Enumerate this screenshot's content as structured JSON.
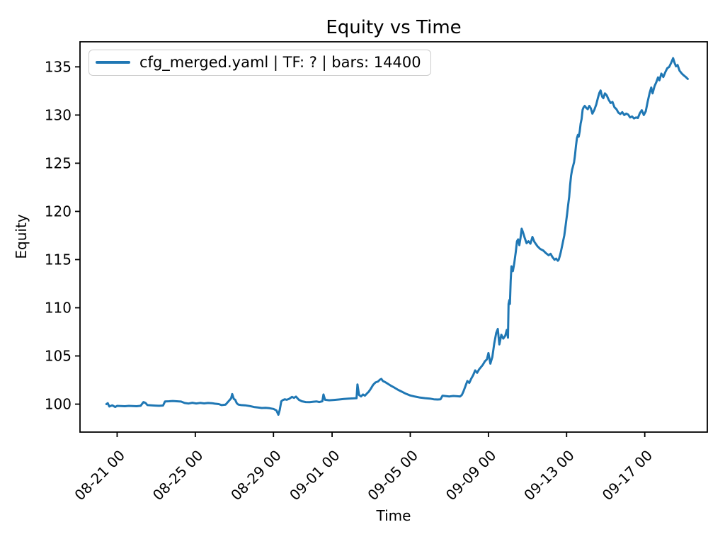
{
  "chart_data": {
    "type": "line",
    "title": "Equity vs Time",
    "xlabel": "Time",
    "ylabel": "Equity",
    "grid": false,
    "legend_position": "upper left",
    "line_color": "#1f77b4",
    "x_unit": "days since 08-19 00:00",
    "xlim": [
      0.1,
      32.2
    ],
    "ylim": [
      97.1,
      137.6
    ],
    "xticks": [
      {
        "pos": 2,
        "label": "08-21 00"
      },
      {
        "pos": 6,
        "label": "08-25 00"
      },
      {
        "pos": 10,
        "label": "08-29 00"
      },
      {
        "pos": 13,
        "label": "09-01 00"
      },
      {
        "pos": 17,
        "label": "09-05 00"
      },
      {
        "pos": 21,
        "label": "09-09 00"
      },
      {
        "pos": 25,
        "label": "09-13 00"
      },
      {
        "pos": 29,
        "label": "09-17 00"
      }
    ],
    "yticks": [
      100,
      105,
      110,
      115,
      120,
      125,
      130,
      135
    ],
    "series": [
      {
        "name": "cfg_merged.yaml | TF: ? | bars: 14400",
        "points": [
          [
            1.45,
            100.0
          ],
          [
            1.52,
            100.1
          ],
          [
            1.6,
            99.75
          ],
          [
            1.75,
            99.88
          ],
          [
            1.9,
            99.7
          ],
          [
            2.0,
            99.82
          ],
          [
            2.2,
            99.8
          ],
          [
            2.4,
            99.78
          ],
          [
            2.6,
            99.82
          ],
          [
            2.8,
            99.8
          ],
          [
            3.0,
            99.78
          ],
          [
            3.2,
            99.83
          ],
          [
            3.35,
            100.22
          ],
          [
            3.45,
            100.12
          ],
          [
            3.55,
            99.9
          ],
          [
            3.75,
            99.87
          ],
          [
            3.95,
            99.85
          ],
          [
            4.15,
            99.83
          ],
          [
            4.35,
            99.86
          ],
          [
            4.45,
            100.28
          ],
          [
            4.65,
            100.3
          ],
          [
            4.85,
            100.33
          ],
          [
            5.05,
            100.3
          ],
          [
            5.27,
            100.27
          ],
          [
            5.45,
            100.12
          ],
          [
            5.65,
            100.06
          ],
          [
            5.85,
            100.14
          ],
          [
            6.05,
            100.07
          ],
          [
            6.25,
            100.13
          ],
          [
            6.45,
            100.08
          ],
          [
            6.65,
            100.12
          ],
          [
            6.85,
            100.1
          ],
          [
            7.0,
            100.05
          ],
          [
            7.2,
            100.0
          ],
          [
            7.35,
            99.9
          ],
          [
            7.55,
            99.95
          ],
          [
            7.7,
            100.3
          ],
          [
            7.83,
            100.6
          ],
          [
            7.89,
            101.05
          ],
          [
            7.97,
            100.55
          ],
          [
            8.04,
            100.45
          ],
          [
            8.12,
            100.1
          ],
          [
            8.2,
            99.95
          ],
          [
            8.35,
            99.9
          ],
          [
            8.55,
            99.88
          ],
          [
            8.8,
            99.8
          ],
          [
            9.0,
            99.7
          ],
          [
            9.2,
            99.65
          ],
          [
            9.4,
            99.6
          ],
          [
            9.6,
            99.62
          ],
          [
            9.8,
            99.58
          ],
          [
            10.0,
            99.5
          ],
          [
            10.15,
            99.35
          ],
          [
            10.25,
            98.9
          ],
          [
            10.32,
            99.4
          ],
          [
            10.4,
            100.3
          ],
          [
            10.48,
            100.42
          ],
          [
            10.58,
            100.5
          ],
          [
            10.68,
            100.45
          ],
          [
            10.8,
            100.55
          ],
          [
            10.95,
            100.75
          ],
          [
            11.05,
            100.65
          ],
          [
            11.15,
            100.78
          ],
          [
            11.3,
            100.45
          ],
          [
            11.45,
            100.3
          ],
          [
            11.65,
            100.22
          ],
          [
            11.85,
            100.2
          ],
          [
            12.05,
            100.25
          ],
          [
            12.2,
            100.28
          ],
          [
            12.35,
            100.22
          ],
          [
            12.5,
            100.3
          ],
          [
            12.56,
            101.0
          ],
          [
            12.64,
            100.45
          ],
          [
            12.85,
            100.4
          ],
          [
            13.1,
            100.44
          ],
          [
            13.35,
            100.48
          ],
          [
            13.6,
            100.53
          ],
          [
            13.85,
            100.58
          ],
          [
            14.1,
            100.6
          ],
          [
            14.25,
            100.62
          ],
          [
            14.3,
            102.05
          ],
          [
            14.38,
            100.95
          ],
          [
            14.48,
            100.8
          ],
          [
            14.58,
            101.0
          ],
          [
            14.68,
            100.88
          ],
          [
            14.78,
            101.1
          ],
          [
            14.88,
            101.3
          ],
          [
            14.98,
            101.6
          ],
          [
            15.1,
            102.0
          ],
          [
            15.22,
            102.25
          ],
          [
            15.35,
            102.35
          ],
          [
            15.45,
            102.55
          ],
          [
            15.52,
            102.62
          ],
          [
            15.6,
            102.4
          ],
          [
            15.72,
            102.28
          ],
          [
            15.85,
            102.12
          ],
          [
            16.0,
            101.92
          ],
          [
            16.18,
            101.72
          ],
          [
            16.38,
            101.48
          ],
          [
            16.58,
            101.28
          ],
          [
            16.78,
            101.08
          ],
          [
            17.0,
            100.9
          ],
          [
            17.25,
            100.78
          ],
          [
            17.5,
            100.68
          ],
          [
            17.75,
            100.62
          ],
          [
            18.0,
            100.58
          ],
          [
            18.2,
            100.5
          ],
          [
            18.4,
            100.48
          ],
          [
            18.55,
            100.5
          ],
          [
            18.65,
            100.88
          ],
          [
            18.8,
            100.84
          ],
          [
            19.0,
            100.8
          ],
          [
            19.2,
            100.85
          ],
          [
            19.4,
            100.82
          ],
          [
            19.55,
            100.8
          ],
          [
            19.64,
            100.95
          ],
          [
            19.72,
            101.3
          ],
          [
            19.82,
            101.85
          ],
          [
            19.92,
            102.4
          ],
          [
            20.02,
            102.2
          ],
          [
            20.12,
            102.65
          ],
          [
            20.22,
            103.0
          ],
          [
            20.32,
            103.5
          ],
          [
            20.42,
            103.25
          ],
          [
            20.52,
            103.6
          ],
          [
            20.62,
            103.85
          ],
          [
            20.72,
            104.1
          ],
          [
            20.82,
            104.45
          ],
          [
            20.92,
            104.65
          ],
          [
            21.0,
            105.3
          ],
          [
            21.1,
            104.2
          ],
          [
            21.2,
            104.9
          ],
          [
            21.3,
            106.3
          ],
          [
            21.4,
            107.4
          ],
          [
            21.48,
            107.8
          ],
          [
            21.56,
            106.2
          ],
          [
            21.66,
            107.2
          ],
          [
            21.76,
            106.8
          ],
          [
            21.86,
            107.1
          ],
          [
            21.94,
            107.7
          ],
          [
            22.0,
            106.9
          ],
          [
            22.03,
            110.4
          ],
          [
            22.07,
            110.8
          ],
          [
            22.1,
            110.4
          ],
          [
            22.14,
            112.8
          ],
          [
            22.18,
            114.3
          ],
          [
            22.25,
            113.8
          ],
          [
            22.32,
            114.6
          ],
          [
            22.4,
            115.8
          ],
          [
            22.46,
            116.9
          ],
          [
            22.52,
            117.1
          ],
          [
            22.58,
            116.5
          ],
          [
            22.64,
            117.2
          ],
          [
            22.7,
            118.2
          ],
          [
            22.76,
            117.9
          ],
          [
            22.85,
            117.3
          ],
          [
            22.95,
            116.7
          ],
          [
            23.05,
            116.9
          ],
          [
            23.15,
            116.65
          ],
          [
            23.25,
            117.35
          ],
          [
            23.35,
            116.85
          ],
          [
            23.5,
            116.4
          ],
          [
            23.65,
            116.1
          ],
          [
            23.8,
            115.95
          ],
          [
            23.95,
            115.65
          ],
          [
            24.08,
            115.45
          ],
          [
            24.18,
            115.6
          ],
          [
            24.28,
            115.25
          ],
          [
            24.38,
            114.98
          ],
          [
            24.46,
            115.1
          ],
          [
            24.55,
            114.88
          ],
          [
            24.6,
            115.0
          ],
          [
            24.65,
            115.35
          ],
          [
            24.7,
            115.75
          ],
          [
            24.76,
            116.3
          ],
          [
            24.82,
            116.9
          ],
          [
            24.88,
            117.5
          ],
          [
            24.93,
            118.2
          ],
          [
            24.98,
            119.0
          ],
          [
            25.03,
            119.8
          ],
          [
            25.08,
            120.7
          ],
          [
            25.13,
            121.5
          ],
          [
            25.18,
            122.7
          ],
          [
            25.23,
            123.7
          ],
          [
            25.28,
            124.3
          ],
          [
            25.33,
            124.7
          ],
          [
            25.38,
            125.1
          ],
          [
            25.43,
            125.8
          ],
          [
            25.48,
            126.8
          ],
          [
            25.53,
            127.6
          ],
          [
            25.58,
            127.95
          ],
          [
            25.62,
            127.75
          ],
          [
            25.67,
            128.3
          ],
          [
            25.72,
            129.1
          ],
          [
            25.77,
            129.6
          ],
          [
            25.82,
            130.55
          ],
          [
            25.87,
            130.8
          ],
          [
            25.93,
            130.95
          ],
          [
            26.0,
            130.75
          ],
          [
            26.08,
            130.6
          ],
          [
            26.16,
            130.95
          ],
          [
            26.24,
            130.7
          ],
          [
            26.32,
            130.15
          ],
          [
            26.42,
            130.55
          ],
          [
            26.52,
            131.1
          ],
          [
            26.6,
            131.75
          ],
          [
            26.68,
            132.3
          ],
          [
            26.74,
            132.55
          ],
          [
            26.82,
            131.9
          ],
          [
            26.88,
            131.75
          ],
          [
            26.96,
            132.25
          ],
          [
            27.05,
            132.05
          ],
          [
            27.15,
            131.6
          ],
          [
            27.25,
            131.25
          ],
          [
            27.35,
            131.35
          ],
          [
            27.45,
            130.8
          ],
          [
            27.55,
            130.6
          ],
          [
            27.65,
            130.25
          ],
          [
            27.75,
            130.1
          ],
          [
            27.85,
            130.3
          ],
          [
            27.95,
            130.0
          ],
          [
            28.05,
            130.15
          ],
          [
            28.15,
            130.05
          ],
          [
            28.25,
            129.75
          ],
          [
            28.35,
            129.85
          ],
          [
            28.45,
            129.65
          ],
          [
            28.55,
            129.75
          ],
          [
            28.65,
            129.7
          ],
          [
            28.75,
            130.2
          ],
          [
            28.85,
            130.5
          ],
          [
            28.95,
            130.0
          ],
          [
            29.05,
            130.4
          ],
          [
            29.15,
            131.4
          ],
          [
            29.25,
            132.3
          ],
          [
            29.33,
            132.85
          ],
          [
            29.4,
            132.25
          ],
          [
            29.5,
            133.0
          ],
          [
            29.6,
            133.45
          ],
          [
            29.68,
            133.9
          ],
          [
            29.75,
            133.6
          ],
          [
            29.85,
            134.3
          ],
          [
            29.95,
            133.95
          ],
          [
            30.05,
            134.45
          ],
          [
            30.15,
            134.85
          ],
          [
            30.25,
            135.0
          ],
          [
            30.35,
            135.4
          ],
          [
            30.45,
            135.9
          ],
          [
            30.52,
            135.45
          ],
          [
            30.6,
            135.05
          ],
          [
            30.68,
            135.2
          ],
          [
            30.78,
            134.6
          ],
          [
            30.9,
            134.3
          ],
          [
            31.0,
            134.1
          ],
          [
            31.1,
            133.95
          ],
          [
            31.2,
            133.75
          ]
        ]
      }
    ]
  }
}
